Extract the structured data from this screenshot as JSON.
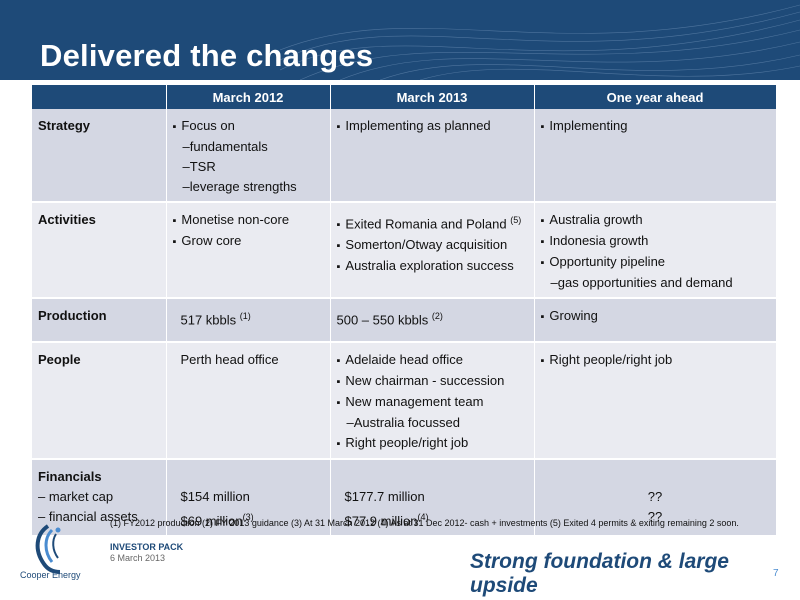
{
  "slide_title": "Delivered the changes",
  "columns": [
    "",
    "March 2012",
    "March 2013",
    "One year ahead"
  ],
  "rows": {
    "strategy": {
      "label": "Strategy",
      "m2012": {
        "bullet": "Focus on",
        "subs": [
          "fundamentals",
          "TSR",
          "leverage strengths"
        ]
      },
      "m2013": {
        "bullet": "Implementing as planned"
      },
      "ahead": {
        "bullet": "Implementing"
      }
    },
    "activities": {
      "label": "Activities",
      "m2012": [
        "Monetise non-core",
        "Grow core"
      ],
      "m2013": {
        "b1": "Exited Romania and Poland",
        "b1_note": "(5)",
        "b2": "Somerton/Otway acquisition",
        "b3": "Australia exploration success"
      },
      "ahead": {
        "b1": "Australia growth",
        "b2": "Indonesia growth",
        "b3": "Opportunity pipeline",
        "sub": "gas opportunities and demand"
      }
    },
    "production": {
      "label": "Production",
      "m2012": "517 kbbls",
      "m2012_note": "(1)",
      "m2013": "500 – 550 kbbls",
      "m2013_note": "(2)",
      "ahead": "Growing"
    },
    "people": {
      "label": "People",
      "m2012": "Perth head office",
      "m2013": {
        "b1": "Adelaide head office",
        "b2": "New chairman - succession",
        "b3": "New management team",
        "sub": "Australia focussed",
        "b4": "Right people/right job"
      },
      "ahead": "Right people/right job"
    },
    "financials": {
      "label": "Financials",
      "sub1": "– market cap",
      "sub2": "– financial assets",
      "m2012": {
        "v1": "$154 million",
        "v2": "$69 million",
        "v2_note": "(3)"
      },
      "m2013": {
        "v1": "$177.7 million",
        "v2": "$77.9 million",
        "v2_note": "(4)"
      },
      "ahead": {
        "v1": "??",
        "v2": "??"
      }
    }
  },
  "footnote": "(1)  FY2012 production  (2) FY 2013 guidance   (3)  At 31 March 2012    (4) As at 31 Dec 2012- cash + investments (5) Exited 4 permits & exiting remaining 2 soon.",
  "brand": {
    "logo_text": "Cooper Energy",
    "pack_label": "INVESTOR PACK",
    "date": "6 March 2013"
  },
  "tagline": "Strong foundation & large upside",
  "page_number": "7",
  "colors": {
    "header_blue": "#1e4a78",
    "row_dark": "#d4d7e3",
    "row_light": "#eaebf1",
    "accent_light_blue": "#4a8cd0"
  }
}
